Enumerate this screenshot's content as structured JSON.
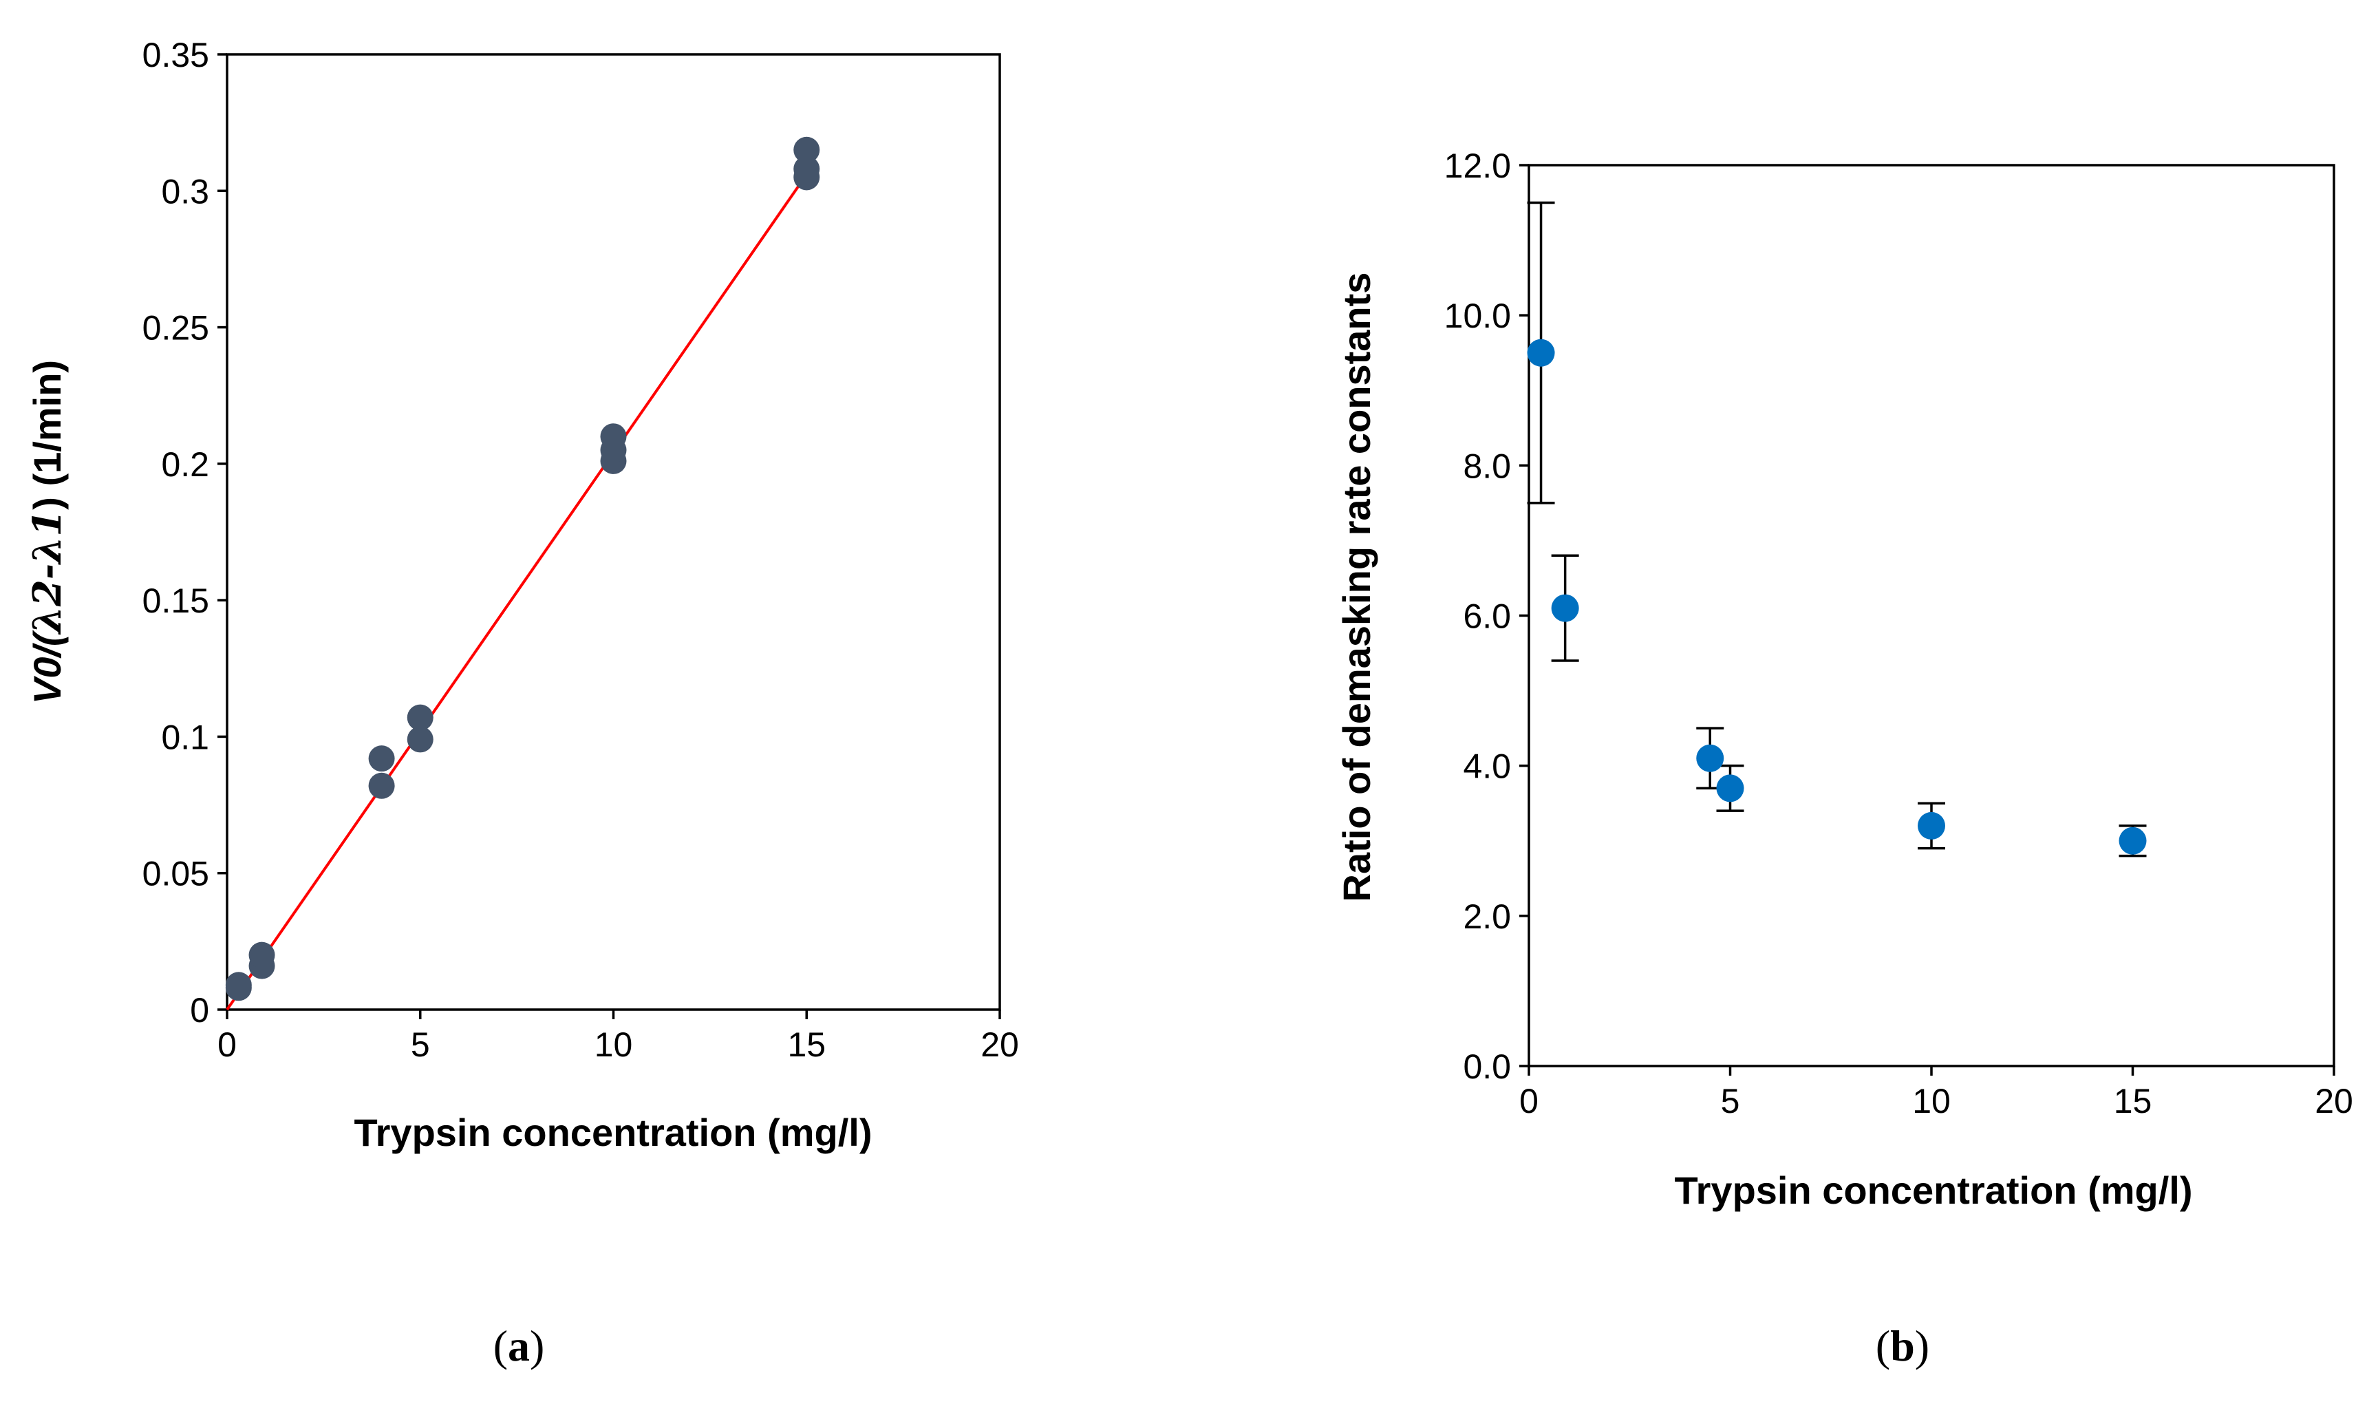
{
  "chart_data": [
    {
      "type": "scatter",
      "panel_label": "(a)",
      "panel_letter": "a",
      "xlabel": "Trypsin concentration (mg/l)",
      "ylabel_prefix": "V0/(",
      "ylabel_lambda_expr": "λ2-λ1",
      "ylabel_suffix": ") (1/min)",
      "xlim": [
        0,
        20
      ],
      "ylim": [
        0,
        0.35
      ],
      "xticks": [
        0,
        5,
        10,
        15,
        20
      ],
      "xtick_labels": [
        "0",
        "5",
        "10",
        "15",
        "20"
      ],
      "yticks": [
        0,
        0.05,
        0.1,
        0.15,
        0.2,
        0.25,
        0.3,
        0.35
      ],
      "ytick_labels": [
        "0",
        "0.05",
        "0.1",
        "0.15",
        "0.2",
        "0.25",
        "0.3",
        "0.35"
      ],
      "marker_color": "#44546a",
      "fit_color": "#ff0000",
      "points": {
        "x": [
          0.3,
          0.3,
          0.9,
          0.9,
          4,
          4,
          5,
          5,
          10,
          10,
          10,
          15,
          15,
          15
        ],
        "y": [
          0.008,
          0.009,
          0.016,
          0.02,
          0.082,
          0.092,
          0.099,
          0.107,
          0.201,
          0.205,
          0.21,
          0.305,
          0.308,
          0.315
        ]
      },
      "fit_line": {
        "x": [
          0,
          15
        ],
        "y": [
          0,
          0.306
        ]
      }
    },
    {
      "type": "scatter",
      "panel_label": "(b)",
      "panel_letter": "b",
      "xlabel": "Trypsin concentration (mg/l)",
      "ylabel": "Ratio of demasking rate constants",
      "xlim": [
        0,
        20
      ],
      "ylim": [
        0,
        12
      ],
      "xticks": [
        0,
        5,
        10,
        15,
        20
      ],
      "xtick_labels": [
        "0",
        "5",
        "10",
        "15",
        "20"
      ],
      "yticks": [
        0,
        2,
        4,
        6,
        8,
        10,
        12
      ],
      "ytick_labels": [
        "0.0",
        "2.0",
        "4.0",
        "6.0",
        "8.0",
        "10.0",
        "12.0"
      ],
      "marker_color": "#0070c0",
      "points": {
        "x": [
          0.3,
          0.9,
          4.5,
          5,
          10,
          15
        ],
        "y": [
          9.5,
          6.1,
          4.1,
          3.7,
          3.2,
          3.0
        ],
        "err_low": [
          7.5,
          5.4,
          3.7,
          3.4,
          2.9,
          2.8
        ],
        "err_high": [
          11.5,
          6.8,
          4.5,
          4.0,
          3.5,
          3.2
        ]
      }
    }
  ]
}
